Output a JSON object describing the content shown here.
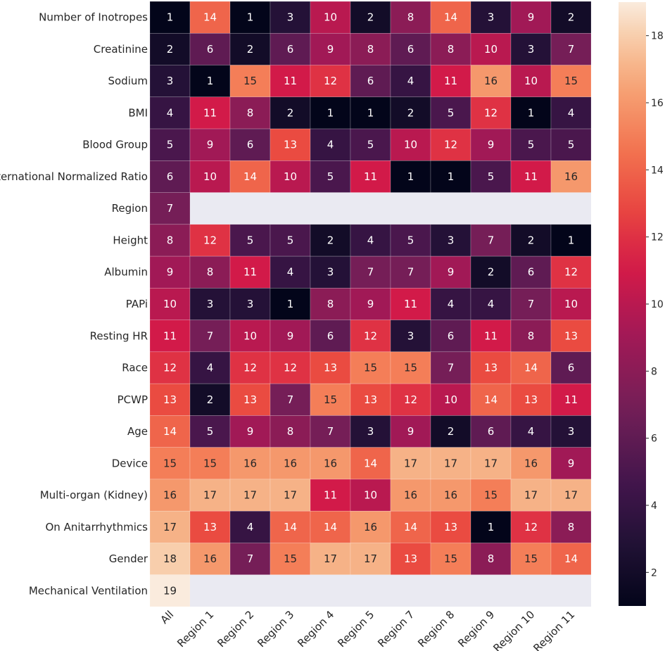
{
  "chart_data": {
    "type": "heatmap",
    "title": "",
    "xlabel": "",
    "ylabel": "",
    "columns": [
      "All",
      "Region 1",
      "Region 2",
      "Region 3",
      "Region 4",
      "Region 5",
      "Region 7",
      "Region 8",
      "Region 9",
      "Region 10",
      "Region 11"
    ],
    "rows": [
      {
        "label": "Number of Inotropes",
        "values": [
          1,
          14,
          1,
          3,
          10,
          2,
          8,
          14,
          3,
          9,
          2
        ]
      },
      {
        "label": "Creatinine",
        "values": [
          2,
          6,
          2,
          6,
          9,
          8,
          6,
          8,
          10,
          3,
          7
        ]
      },
      {
        "label": "Sodium",
        "values": [
          3,
          1,
          15,
          11,
          12,
          6,
          4,
          11,
          16,
          10,
          15
        ]
      },
      {
        "label": "BMI",
        "values": [
          4,
          11,
          8,
          2,
          1,
          1,
          2,
          5,
          12,
          1,
          4
        ]
      },
      {
        "label": "Blood Group",
        "values": [
          5,
          9,
          6,
          13,
          4,
          5,
          10,
          12,
          9,
          5,
          5
        ]
      },
      {
        "label": "International Normalized Ratio",
        "values": [
          6,
          10,
          14,
          10,
          5,
          11,
          1,
          1,
          5,
          11,
          16
        ]
      },
      {
        "label": "Region",
        "values": [
          7,
          null,
          null,
          null,
          null,
          null,
          null,
          null,
          null,
          null,
          null
        ]
      },
      {
        "label": "Height",
        "values": [
          8,
          12,
          5,
          5,
          2,
          4,
          5,
          3,
          7,
          2,
          1
        ]
      },
      {
        "label": "Albumin",
        "values": [
          9,
          8,
          11,
          4,
          3,
          7,
          7,
          9,
          2,
          6,
          12
        ]
      },
      {
        "label": "PAPi",
        "values": [
          10,
          3,
          3,
          1,
          8,
          9,
          11,
          4,
          4,
          7,
          10
        ]
      },
      {
        "label": "Resting HR",
        "values": [
          11,
          7,
          10,
          9,
          6,
          12,
          3,
          6,
          11,
          8,
          13
        ]
      },
      {
        "label": "Race",
        "values": [
          12,
          4,
          12,
          12,
          13,
          15,
          15,
          7,
          13,
          14,
          6
        ]
      },
      {
        "label": "PCWP",
        "values": [
          13,
          2,
          13,
          7,
          15,
          13,
          12,
          10,
          14,
          13,
          11
        ]
      },
      {
        "label": "Age",
        "values": [
          14,
          5,
          9,
          8,
          7,
          3,
          9,
          2,
          6,
          4,
          3
        ]
      },
      {
        "label": "Device",
        "values": [
          15,
          15,
          16,
          16,
          16,
          14,
          17,
          17,
          17,
          16,
          9
        ]
      },
      {
        "label": "Multi-organ (Kidney)",
        "values": [
          16,
          17,
          17,
          17,
          11,
          10,
          16,
          16,
          15,
          17,
          17
        ]
      },
      {
        "label": "On Anitarrhythmics",
        "values": [
          17,
          13,
          4,
          14,
          14,
          16,
          14,
          13,
          1,
          12,
          8
        ]
      },
      {
        "label": "Gender",
        "values": [
          18,
          16,
          7,
          15,
          17,
          17,
          13,
          15,
          8,
          15,
          14
        ]
      },
      {
        "label": "Mechanical Ventilation",
        "values": [
          19,
          null,
          null,
          null,
          null,
          null,
          null,
          null,
          null,
          null,
          null
        ]
      }
    ],
    "value_range": [
      1,
      19
    ],
    "colorbar": {
      "ticks": [
        2,
        4,
        6,
        8,
        10,
        12,
        14,
        16,
        18
      ],
      "colormap": "rocket"
    },
    "missing_color": "#eaeaf2",
    "annotated": true
  }
}
